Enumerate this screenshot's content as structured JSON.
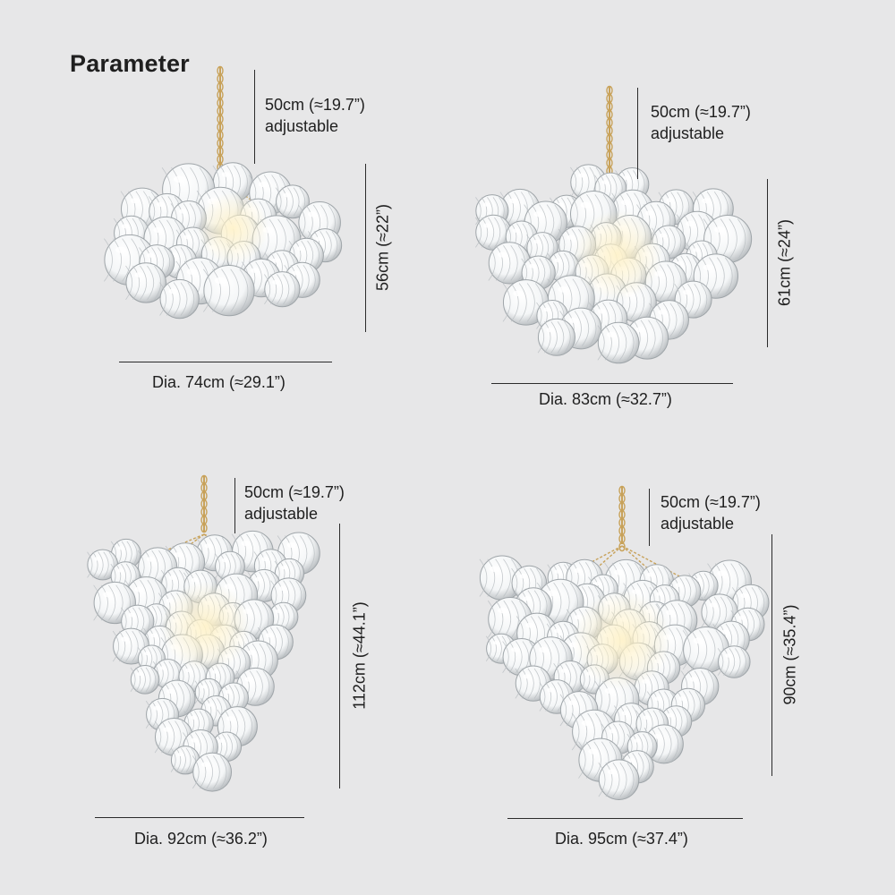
{
  "title": "Parameter",
  "colors": {
    "background": "#e7e7e8",
    "glass": "#f4f6f7",
    "brass": "#c8a25a"
  },
  "products": [
    {
      "chain_length": "50cm (≈19.7”)",
      "chain_note": "adjustable",
      "height": "56cm (≈22”)",
      "diameter": "Dia. 74cm (≈29.1”)"
    },
    {
      "chain_length": "50cm (≈19.7”)",
      "chain_note": "adjustable",
      "height": "61cm (≈24”)",
      "diameter": "Dia. 83cm (≈32.7”)"
    },
    {
      "chain_length": "50cm (≈19.7”)",
      "chain_note": "adjustable",
      "height": "112cm (≈44.1”)",
      "diameter": "Dia. 92cm (≈36.2”)"
    },
    {
      "chain_length": "50cm (≈19.7”)",
      "chain_note": "adjustable",
      "height": "90cm (≈35.4”)",
      "diameter": "Dia. 95cm (≈37.4”)"
    }
  ]
}
